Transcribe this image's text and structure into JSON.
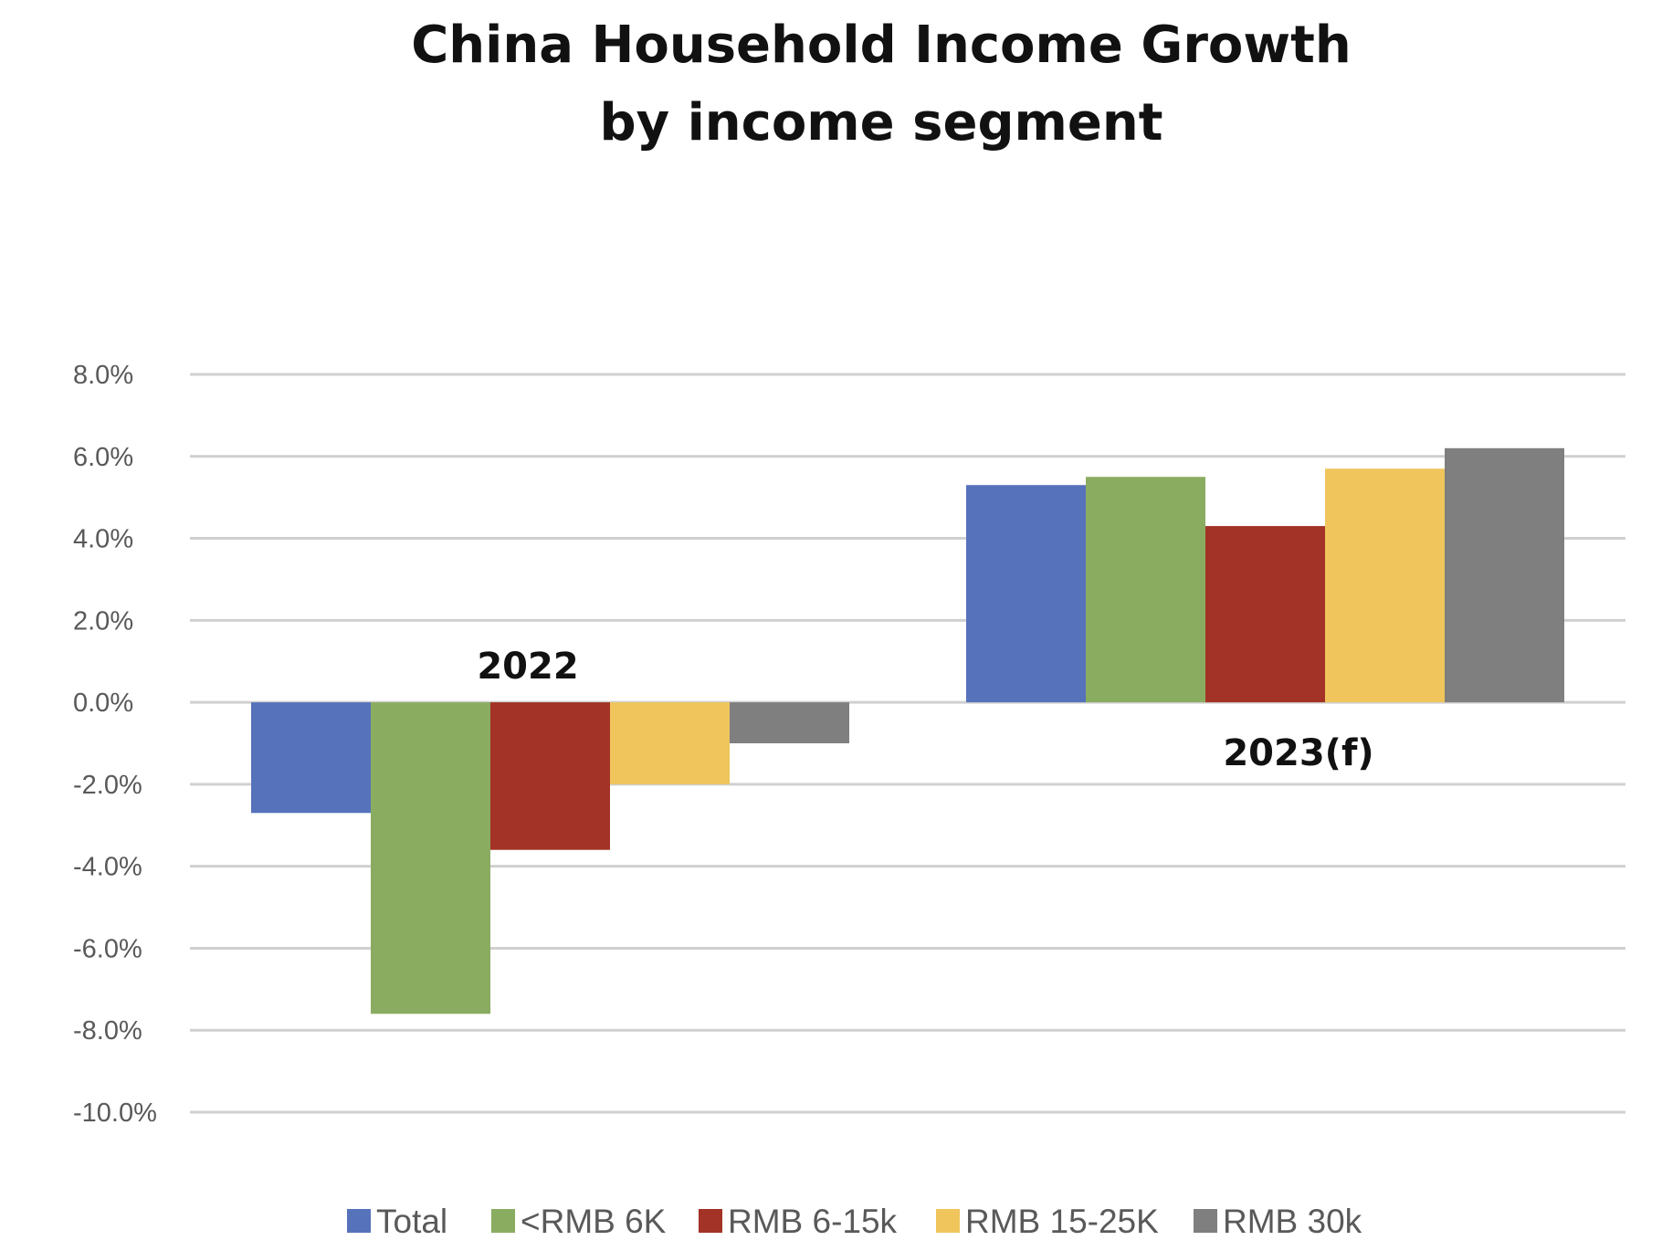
{
  "chart_data": {
    "type": "bar",
    "title": "China Household Income Growth",
    "subtitle": "by income segment",
    "categories": [
      "2022",
      "2023(f)"
    ],
    "series": [
      {
        "name": "Total",
        "color": "#5672bb",
        "values": [
          -2.7,
          5.3
        ]
      },
      {
        "name": "<RMB 6K",
        "color": "#8aac61",
        "values": [
          -7.6,
          5.5
        ]
      },
      {
        "name": "RMB 6-15k",
        "color": "#a23326",
        "values": [
          -3.6,
          4.3
        ]
      },
      {
        "name": "RMB 15-25K",
        "color": "#efc55c",
        "values": [
          -2.0,
          5.7
        ]
      },
      {
        "name": "RMB 30k",
        "color": "#7f7f7f",
        "values": [
          -1.0,
          6.2
        ]
      }
    ],
    "yticks": [
      "8.0%",
      "6.0%",
      "4.0%",
      "2.0%",
      "0.0%",
      "-2.0%",
      "-4.0%",
      "-6.0%",
      "-8.0%",
      "-10.0%"
    ],
    "ylim": [
      -10,
      8
    ],
    "xlabel": "",
    "ylabel": "",
    "grid": true,
    "legend_position": "bottom"
  }
}
